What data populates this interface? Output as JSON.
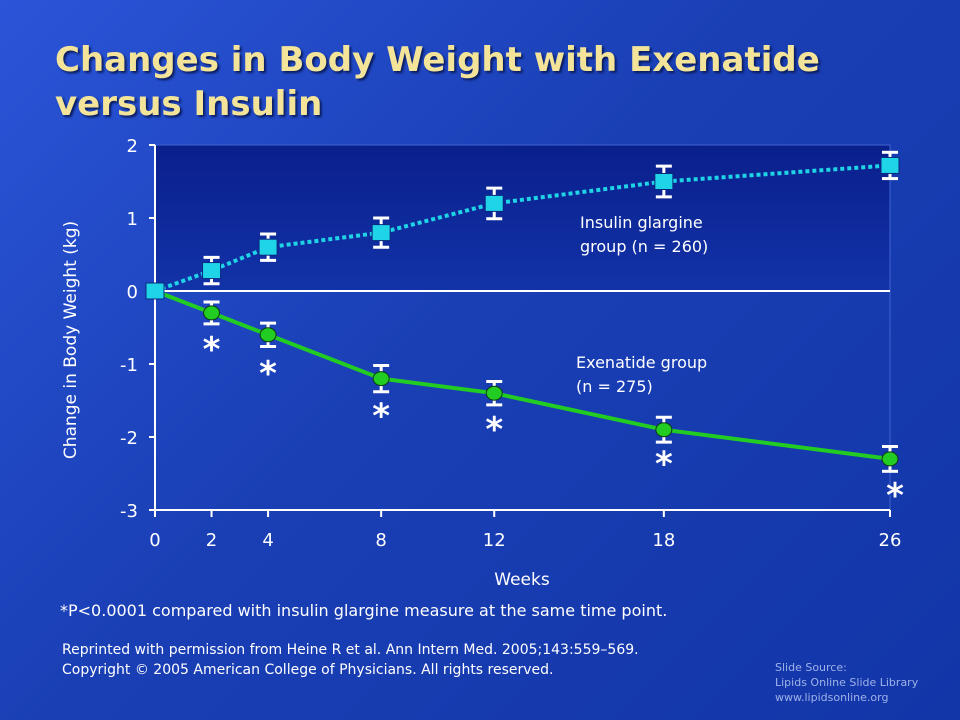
{
  "slide": {
    "title": "Changes in Body Weight with Exenatide versus Insulin",
    "footnote": "*P<0.0001 compared with insulin glargine measure at the same time point.",
    "credit_line1": "Reprinted with permission from Heine R et al. Ann Intern Med. 2005;143:559–569.",
    "credit_line2": "Copyright © 2005 American College of Physicians. All rights reserved.",
    "source_line1": "Slide Source:",
    "source_line2": "Lipids Online Slide Library",
    "source_line3": "www.lipidsonline.org"
  },
  "colors": {
    "background": "#1a3fb5",
    "title": "#f3e49a",
    "insulin": "#1fd4e6",
    "exenatide": "#22cc22",
    "plot_top": "#0a1f8c",
    "text": "#ffffff"
  },
  "chart_data": {
    "type": "line",
    "xlabel": "Weeks",
    "ylabel": "Change in Body Weight (kg)",
    "xticks": [
      0,
      2,
      4,
      8,
      12,
      18,
      26
    ],
    "yticks": [
      2,
      1,
      0,
      -1,
      -2,
      -3
    ],
    "xlim": [
      0,
      26
    ],
    "ylim": [
      -3,
      2
    ],
    "series": [
      {
        "key": "insulin",
        "marker": "square",
        "line_style": "dotted",
        "x": [
          0,
          2,
          4,
          8,
          12,
          18,
          26
        ],
        "y": [
          0,
          0.28,
          0.6,
          0.8,
          1.2,
          1.5,
          1.72
        ],
        "err": [
          0,
          0.18,
          0.18,
          0.2,
          0.21,
          0.21,
          0.18
        ]
      },
      {
        "key": "exenatide",
        "marker": "circle",
        "line_style": "solid",
        "x": [
          0,
          2,
          4,
          8,
          12,
          18,
          26
        ],
        "y": [
          0,
          -0.3,
          -0.6,
          -1.2,
          -1.4,
          -1.9,
          -2.3
        ],
        "err": [
          0,
          0.15,
          0.16,
          0.18,
          0.16,
          0.17,
          0.17
        ]
      }
    ],
    "annotations": [
      {
        "key": "insulin_label",
        "lines": [
          "Insulin glargine",
          "group (n = 260)"
        ]
      },
      {
        "key": "exenatide_label",
        "lines": [
          "Exenatide group",
          "(n = 275)"
        ]
      }
    ],
    "significance_marker": "*",
    "significance_x": [
      2,
      4,
      8,
      12,
      18,
      26
    ]
  }
}
